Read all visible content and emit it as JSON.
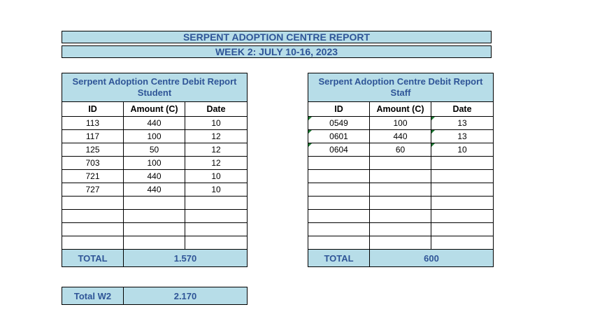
{
  "report": {
    "title": "SERPENT ADOPTION CENTRE REPORT",
    "subtitle": "WEEK 2: JULY 10-16, 2023"
  },
  "student": {
    "title_line1": "Serpent Adoption Centre Debit Report",
    "title_line2": "Student",
    "columns": [
      "ID",
      "Amount (C)",
      "Date"
    ],
    "rows": [
      [
        "113",
        "440",
        "10"
      ],
      [
        "117",
        "100",
        "12"
      ],
      [
        "125",
        "50",
        "12"
      ],
      [
        "703",
        "100",
        "12"
      ],
      [
        "721",
        "440",
        "10"
      ],
      [
        "727",
        "440",
        "10"
      ],
      [
        "",
        "",
        ""
      ],
      [
        "",
        "",
        ""
      ],
      [
        "",
        "",
        ""
      ],
      [
        "",
        "",
        ""
      ]
    ],
    "total_label": "TOTAL",
    "total_value": "1.570"
  },
  "staff": {
    "title_line1": "Serpent Adoption Centre Debit Report",
    "title_line2": "Staff",
    "columns": [
      "ID",
      "Amount (C)",
      "Date"
    ],
    "rows": [
      [
        "0549",
        "100",
        "13"
      ],
      [
        "0601",
        "440",
        "13"
      ],
      [
        "0604",
        "60",
        "10"
      ],
      [
        "",
        "",
        ""
      ],
      [
        "",
        "",
        ""
      ],
      [
        "",
        "",
        ""
      ],
      [
        "",
        "",
        ""
      ],
      [
        "",
        "",
        ""
      ],
      [
        "",
        "",
        ""
      ],
      [
        "",
        "",
        ""
      ]
    ],
    "total_label": "TOTAL",
    "total_value": "600"
  },
  "grand_total": {
    "label": "Total W2",
    "value": "2.170"
  }
}
